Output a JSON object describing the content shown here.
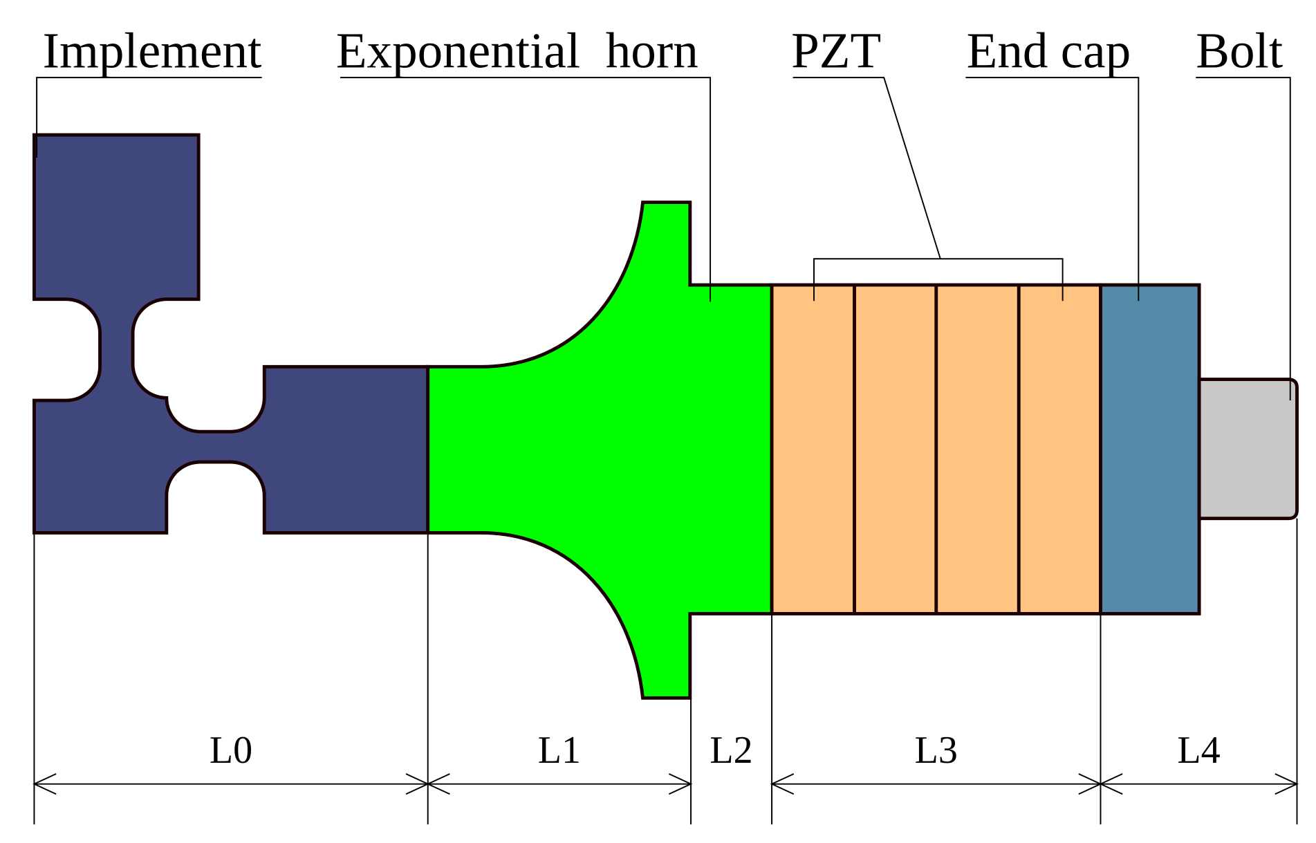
{
  "components": [
    {
      "label": "Implement"
    },
    {
      "label": "Exponential  horn"
    },
    {
      "label": "PZT"
    },
    {
      "label": "End cap"
    },
    {
      "label": "Bolt"
    }
  ],
  "dimensions": [
    {
      "label": "L0"
    },
    {
      "label": "L1"
    },
    {
      "label": "L2"
    },
    {
      "label": "L3"
    },
    {
      "label": "L4"
    }
  ]
}
